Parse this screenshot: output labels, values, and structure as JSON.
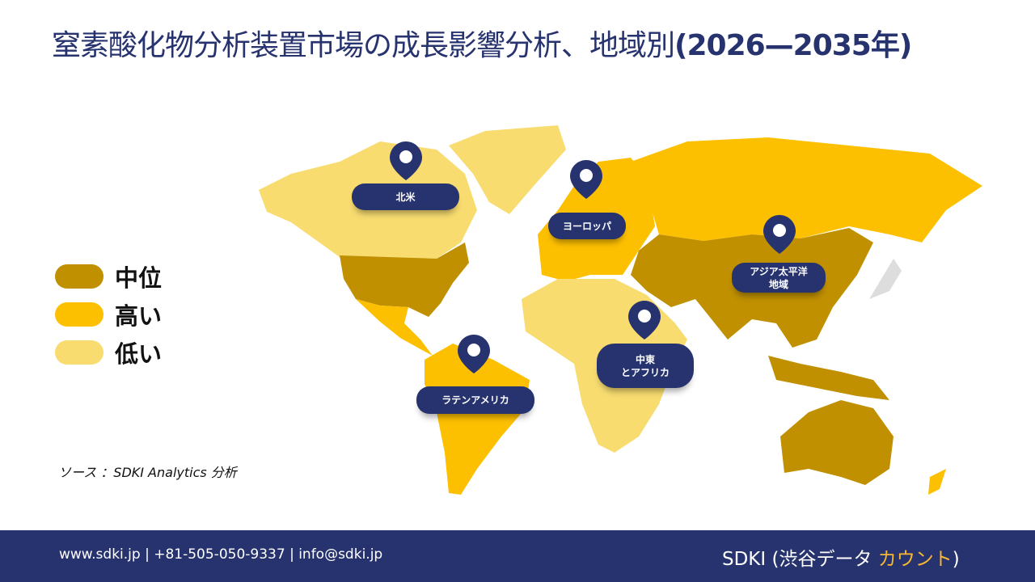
{
  "title": {
    "main": "窒素酸化物分析装置市場の成長影響分析、地域別",
    "years": "(2026—2035年)"
  },
  "legend": [
    {
      "label": "中位",
      "color": "#c09000"
    },
    {
      "label": "高い",
      "color": "#fdc000"
    },
    {
      "label": "低い",
      "color": "#f8dc70"
    }
  ],
  "regions": [
    {
      "name": "北米",
      "level": "中位"
    },
    {
      "name": "ヨーロッパ",
      "level": "高い"
    },
    {
      "name": "アジア太平洋地域",
      "level": "中位"
    },
    {
      "name": "中東とアフリカ",
      "level": "低い"
    },
    {
      "name": "ラテンアメリカ",
      "level": "高い"
    }
  ],
  "pins": {
    "north_america": "北米",
    "europe": "ヨーロッパ",
    "apac_line1": "アジア太平洋",
    "apac_line2": "地域",
    "mea_line1": "中東",
    "mea_line2": "とアフリカ",
    "latam": "ラテンアメリカ"
  },
  "source": "ソース ：SDKI Analytics 分析",
  "footer": {
    "contact": "www.sdki.jp | +81-505-050-9337 | info@sdki.jp",
    "brand_prefix": "SDKI (渋谷データ ",
    "brand_accent": "カウント",
    "brand_suffix": ")"
  }
}
